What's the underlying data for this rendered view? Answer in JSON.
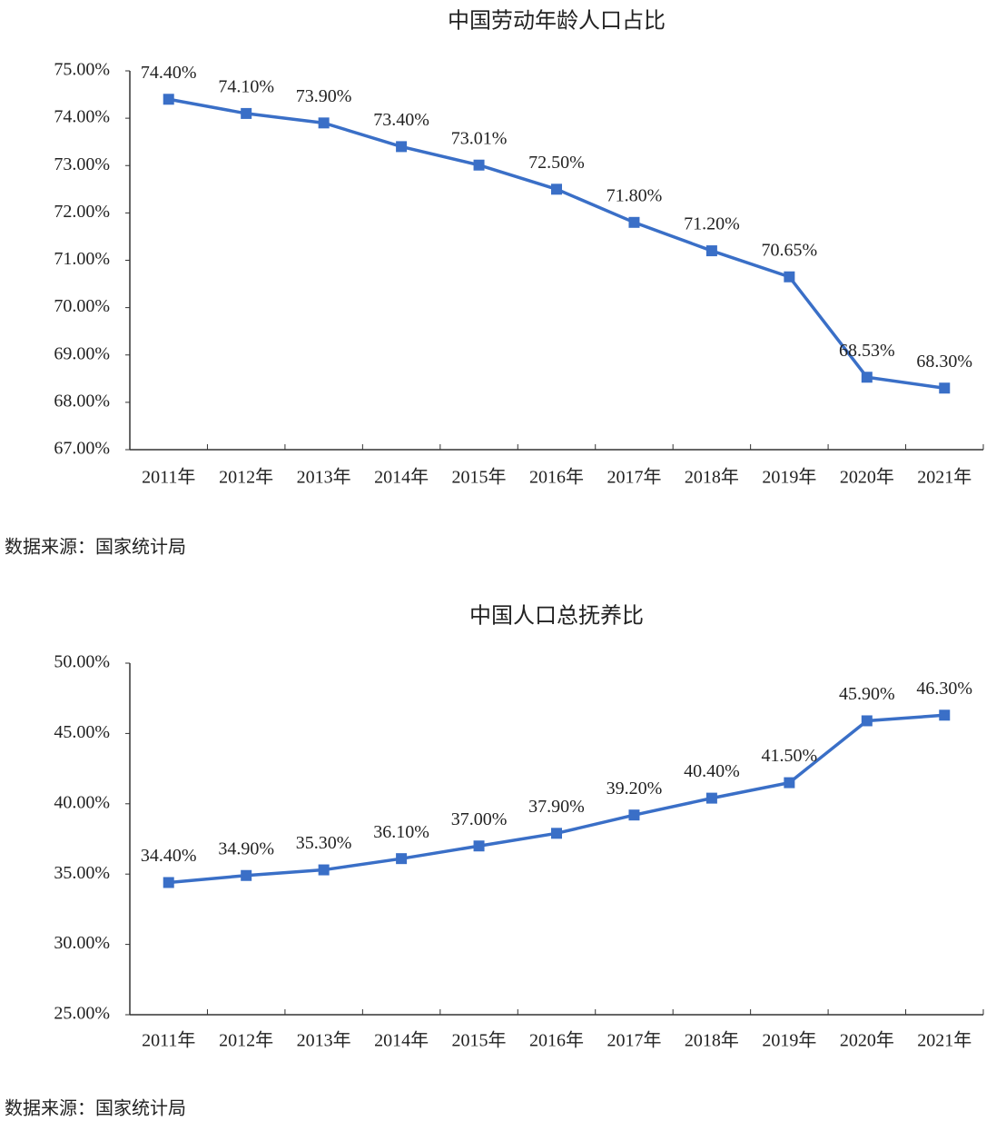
{
  "chart_data": [
    {
      "type": "line",
      "title": "中国劳动年龄人口占比",
      "categories": [
        "2011年",
        "2012年",
        "2013年",
        "2014年",
        "2015年",
        "2016年",
        "2017年",
        "2018年",
        "2019年",
        "2020年",
        "2021年"
      ],
      "series": [
        {
          "name": "劳动年龄人口占比",
          "color": "#3a6fc7",
          "values": [
            74.4,
            74.1,
            73.9,
            73.4,
            73.01,
            72.5,
            71.8,
            71.2,
            70.65,
            68.53,
            68.3
          ],
          "value_labels": [
            "74.40%",
            "74.10%",
            "73.90%",
            "73.40%",
            "73.01%",
            "72.50%",
            "71.80%",
            "71.20%",
            "70.65%",
            "68.53%",
            "68.30%"
          ]
        }
      ],
      "ylim": [
        67,
        75
      ],
      "yticks": [
        {
          "value": 67,
          "label": "67.00%"
        },
        {
          "value": 68,
          "label": "68.00%"
        },
        {
          "value": 69,
          "label": "69.00%"
        },
        {
          "value": 70,
          "label": "70.00%"
        },
        {
          "value": 71,
          "label": "71.00%"
        },
        {
          "value": 72,
          "label": "72.00%"
        },
        {
          "value": 73,
          "label": "73.00%"
        },
        {
          "value": 74,
          "label": "74.00%"
        },
        {
          "value": 75,
          "label": "75.00%"
        }
      ],
      "grid": false,
      "source": "数据来源：国家统计局"
    },
    {
      "type": "line",
      "title": "中国人口总抚养比",
      "categories": [
        "2011年",
        "2012年",
        "2013年",
        "2014年",
        "2015年",
        "2016年",
        "2017年",
        "2018年",
        "2019年",
        "2020年",
        "2021年"
      ],
      "series": [
        {
          "name": "人口总抚养比",
          "color": "#3a6fc7",
          "values": [
            34.4,
            34.9,
            35.3,
            36.1,
            37.0,
            37.9,
            39.2,
            40.4,
            41.5,
            45.9,
            46.3
          ],
          "value_labels": [
            "34.40%",
            "34.90%",
            "35.30%",
            "36.10%",
            "37.00%",
            "37.90%",
            "39.20%",
            "40.40%",
            "41.50%",
            "45.90%",
            "46.30%"
          ]
        }
      ],
      "ylim": [
        25,
        50
      ],
      "yticks": [
        {
          "value": 25,
          "label": "25.00%"
        },
        {
          "value": 30,
          "label": "30.00%"
        },
        {
          "value": 35,
          "label": "35.00%"
        },
        {
          "value": 40,
          "label": "40.00%"
        },
        {
          "value": 45,
          "label": "45.00%"
        },
        {
          "value": 50,
          "label": "50.00%"
        }
      ],
      "grid": false,
      "source": "数据来源：国家统计局"
    }
  ]
}
